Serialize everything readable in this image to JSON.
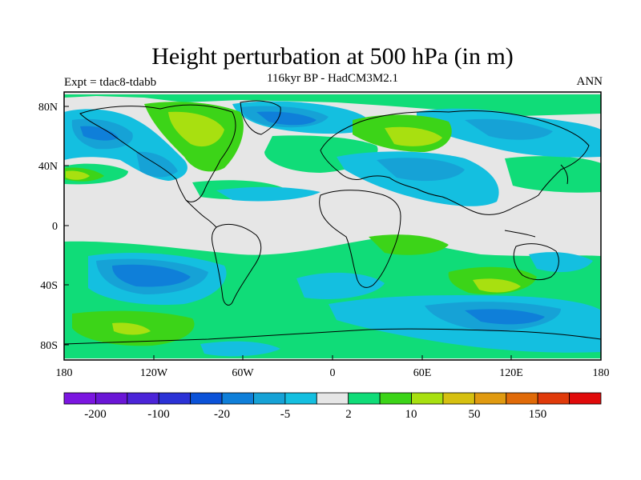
{
  "title": "Height perturbation at 500 hPa (in m)",
  "subtitle": "116kyr BP - HadCM3M2.1",
  "left_label": "Expt = tdac8-tdabb",
  "right_label": "ANN",
  "lat_ticks": [
    "80N",
    "40N",
    "0",
    "40S",
    "80S"
  ],
  "lon_ticks": [
    "180",
    "120W",
    "60W",
    "0",
    "60E",
    "120E",
    "180"
  ],
  "colorbar": {
    "colors": [
      "#7b16e0",
      "#6a16d6",
      "#4b24d8",
      "#2b32d6",
      "#0b52d8",
      "#0f7fd9",
      "#16a2d6",
      "#14bfe0",
      "#e6e6e6",
      "#10dc78",
      "#3cd418",
      "#a8e010",
      "#d6c010",
      "#e09a10",
      "#e06a08",
      "#e03a0a",
      "#e00a0a"
    ],
    "tick_labels": [
      "-200",
      "-100",
      "-20",
      "-5",
      "2",
      "10",
      "50",
      "150"
    ]
  }
}
